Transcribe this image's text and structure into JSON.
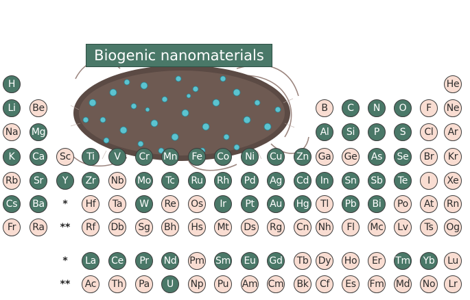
{
  "title": "Biogenic nanomaterials",
  "colors": {
    "biogenic": "#4a7868",
    "non_biogenic": "#f9ddd2",
    "outline": "#3a3a3a"
  },
  "illustration": "bacterium-cell-with-nanoparticles",
  "legend_markers": {
    "lanthanide_marker": "*",
    "actinide_marker": "**"
  },
  "rows": [
    [
      [
        "H",
        1
      ]
    ],
    [
      [
        "Li",
        1
      ],
      [
        "Be",
        0
      ]
    ],
    [
      [
        "Na",
        0
      ],
      [
        "Mg",
        1
      ]
    ],
    [
      [
        "K",
        1
      ],
      [
        "Ca",
        1
      ],
      [
        "Sc",
        0
      ],
      [
        "Ti",
        1
      ],
      [
        "V",
        1
      ],
      [
        "Cr",
        1
      ],
      [
        "Mn",
        1
      ],
      [
        "Fe",
        1
      ],
      [
        "Co",
        1
      ],
      [
        "Ni",
        1
      ],
      [
        "Cu",
        1
      ],
      [
        "Zn",
        1
      ]
    ],
    [
      [
        "Rb",
        0
      ],
      [
        "Sr",
        1
      ],
      [
        "Y",
        1
      ],
      [
        "Zr",
        1
      ],
      [
        "Nb",
        0
      ],
      [
        "Mo",
        1
      ],
      [
        "Tc",
        1
      ],
      [
        "Ru",
        1
      ],
      [
        "Rh",
        1
      ],
      [
        "Pd",
        1
      ],
      [
        "Ag",
        1
      ],
      [
        "Cd",
        1
      ],
      [
        "In",
        1
      ],
      [
        "Sn",
        1
      ],
      [
        "Sb",
        1
      ],
      [
        "Te",
        1
      ],
      [
        "I",
        0
      ],
      [
        "Xe",
        0
      ]
    ],
    [
      [
        "Cs",
        1
      ],
      [
        "Ba",
        1
      ],
      [
        "*",
        -1
      ],
      [
        "Hf",
        0
      ],
      [
        "Ta",
        0
      ],
      [
        "W",
        1
      ],
      [
        "Re",
        0
      ],
      [
        "Os",
        0
      ],
      [
        "Ir",
        1
      ],
      [
        "Pt",
        1
      ],
      [
        "Au",
        1
      ],
      [
        "Hg",
        1
      ],
      [
        "Tl",
        0
      ],
      [
        "Pb",
        1
      ],
      [
        "Bi",
        1
      ],
      [
        "Po",
        0
      ],
      [
        "At",
        0
      ],
      [
        "Rn",
        0
      ]
    ],
    [
      [
        "Fr",
        0
      ],
      [
        "Ra",
        0
      ],
      [
        "**",
        -1
      ],
      [
        "Rf",
        0
      ],
      [
        "Db",
        0
      ],
      [
        "Sg",
        0
      ],
      [
        "Bh",
        0
      ],
      [
        "Hs",
        0
      ],
      [
        "Mt",
        0
      ],
      [
        "Ds",
        0
      ],
      [
        "Rg",
        0
      ],
      [
        "Cn",
        0
      ],
      [
        "Nh",
        0
      ],
      [
        "Fl",
        0
      ],
      [
        "Mc",
        0
      ],
      [
        "Lv",
        0
      ],
      [
        "Ts",
        0
      ],
      [
        "Og",
        0
      ]
    ]
  ],
  "p_block_top": {
    "row1": [
      [
        "He",
        0
      ]
    ],
    "row2": [
      [
        "B",
        0
      ],
      [
        "C",
        1
      ],
      [
        "N",
        1
      ],
      [
        "O",
        1
      ],
      [
        "F",
        0
      ],
      [
        "Ne",
        0
      ]
    ],
    "row3": [
      [
        "Al",
        1
      ],
      [
        "Si",
        1
      ],
      [
        "P",
        1
      ],
      [
        "S",
        1
      ],
      [
        "Cl",
        0
      ],
      [
        "Ar",
        0
      ]
    ],
    "row4": [
      [
        "Ga",
        0
      ],
      [
        "Ge",
        0
      ],
      [
        "As",
        1
      ],
      [
        "Se",
        1
      ],
      [
        "Br",
        0
      ],
      [
        "Kr",
        0
      ]
    ]
  },
  "lanthanides": [
    [
      "*",
      -1
    ],
    [
      "La",
      1
    ],
    [
      "Ce",
      1
    ],
    [
      "Pr",
      1
    ],
    [
      "Nd",
      1
    ],
    [
      "Pm",
      0
    ],
    [
      "Sm",
      1
    ],
    [
      "Eu",
      1
    ],
    [
      "Gd",
      1
    ],
    [
      "Tb",
      0
    ],
    [
      "Dy",
      0
    ],
    [
      "Ho",
      0
    ],
    [
      "Er",
      0
    ],
    [
      "Tm",
      1
    ],
    [
      "Yb",
      1
    ],
    [
      "Lu",
      0
    ]
  ],
  "actinides": [
    [
      "**",
      -1
    ],
    [
      "Ac",
      0
    ],
    [
      "Th",
      0
    ],
    [
      "Pa",
      0
    ],
    [
      "U",
      1
    ],
    [
      "Np",
      0
    ],
    [
      "Pu",
      0
    ],
    [
      "Am",
      0
    ],
    [
      "Cm",
      0
    ],
    [
      "Bk",
      0
    ],
    [
      "Cf",
      0
    ],
    [
      "Es",
      0
    ],
    [
      "Fm",
      0
    ],
    [
      "Md",
      0
    ],
    [
      "No",
      0
    ],
    [
      "Lr",
      0
    ]
  ]
}
